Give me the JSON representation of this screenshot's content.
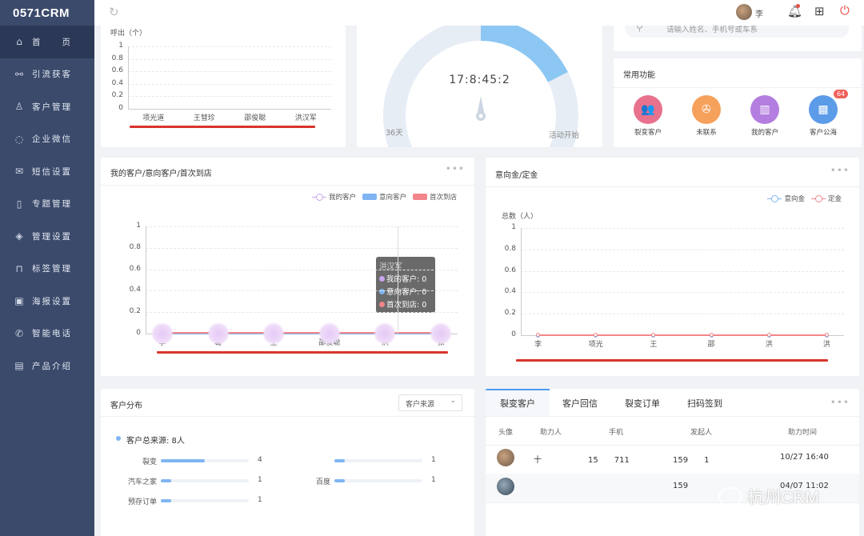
{
  "app": {
    "logo": "0571CRM"
  },
  "sidebar": {
    "items": [
      {
        "label": "首　　页",
        "icon": "home-icon",
        "glyph": "⌂"
      },
      {
        "label": "引流获客",
        "icon": "share-icon",
        "glyph": "⚯"
      },
      {
        "label": "客户管理",
        "icon": "user-icon",
        "glyph": "♙"
      },
      {
        "label": "企业微信",
        "icon": "chat-icon",
        "glyph": "◌"
      },
      {
        "label": "短信设置",
        "icon": "mail-icon",
        "glyph": "✉"
      },
      {
        "label": "专题管理",
        "icon": "document-icon",
        "glyph": "▯"
      },
      {
        "label": "管理设置",
        "icon": "layers-icon",
        "glyph": "◈"
      },
      {
        "label": "标签管理",
        "icon": "bookmark-icon",
        "glyph": "⊓"
      },
      {
        "label": "海报设置",
        "icon": "image-icon",
        "glyph": "▣"
      },
      {
        "label": "智能电话",
        "icon": "phone-icon",
        "glyph": "✆"
      },
      {
        "label": "产品介绍",
        "icon": "book-icon",
        "glyph": "▤"
      }
    ]
  },
  "topbar": {
    "user_name": "李",
    "icons": [
      "refresh-icon",
      "avatar",
      "bell-icon",
      "apps-icon",
      "power-icon"
    ]
  },
  "calls_chart": {
    "ylabel": "呼出（个）",
    "yticks": [
      "1",
      "0.8",
      "0.6",
      "0.4",
      "0.2",
      "0"
    ],
    "categories": [
      "项光道",
      "王彗珍",
      "邵俊聪",
      "洪汉军"
    ]
  },
  "gauge": {
    "time": "17:8:45:2",
    "left_label": "36天",
    "right_label": "活动开始",
    "value_fraction": 0.27
  },
  "search": {
    "placeholder": "请输入姓名、手机号或车系"
  },
  "functions": {
    "title": "常用功能",
    "items": [
      {
        "label": "裂变客户",
        "icon": "users-icon",
        "color": "#e8728e",
        "glyph": "👥"
      },
      {
        "label": "未联系",
        "icon": "tie-icon",
        "color": "#f5a15c",
        "glyph": "✇"
      },
      {
        "label": "我的客户",
        "icon": "bar-chart-icon",
        "color": "#b47ee0",
        "glyph": "▥"
      },
      {
        "label": "客户公海",
        "icon": "briefcase-icon",
        "color": "#5b9be8",
        "glyph": "▩"
      }
    ],
    "badge": "64"
  },
  "chart1": {
    "title": "我的客户/意向客户/首次到店",
    "legend": [
      "我的客户",
      "意向客户",
      "首次到店"
    ],
    "yticks": [
      "1",
      "0.8",
      "0.6",
      "0.4",
      "0.2",
      "0"
    ],
    "xlabels": [
      "李",
      "葛",
      "王",
      "邵俊聪",
      "洪",
      "张"
    ],
    "tooltip": {
      "title": "洪汉军",
      "rows": [
        "我的客户: 0",
        "意向客户: 0",
        "首次到店: 0"
      ]
    }
  },
  "chart2": {
    "title": "意向金/定金",
    "legend": [
      "意向金",
      "定金"
    ],
    "ylabel": "总数（人）",
    "yticks": [
      "1",
      "0.8",
      "0.6",
      "0.4",
      "0.2",
      "0"
    ],
    "xlabels": [
      "李",
      "项光",
      "王",
      "邵",
      "洪",
      "洪"
    ]
  },
  "distribution": {
    "title": "客户分布",
    "select": "客户来源",
    "total": "客户总来源: 8人",
    "items": [
      {
        "label": "裂变",
        "value": "4",
        "fraction": 0.5
      },
      {
        "label": "汽车之家",
        "value": "1",
        "fraction": 0.12
      },
      {
        "label": "预存订单",
        "value": "1",
        "fraction": 0.12
      },
      {
        "label": "",
        "value": "1",
        "fraction": 0.12
      },
      {
        "label": "百度",
        "value": "1",
        "fraction": 0.12
      }
    ]
  },
  "table": {
    "tabs": [
      "裂变客户",
      "客户回信",
      "裂变订单",
      "扫码签到"
    ],
    "headers": [
      "头像",
      "助力人",
      "手机",
      "发起人",
      "助力时间"
    ],
    "rows": [
      {
        "helper": "十",
        "phone": "15　　711",
        "sponsor": "159　　1",
        "time": "10/27 16:40"
      },
      {
        "helper": "",
        "phone": "",
        "sponsor": "159",
        "time": "04/07 11:02"
      }
    ]
  },
  "watermark": "杭州CRM",
  "chart_data": [
    {
      "type": "bar",
      "title": "",
      "ylabel": "呼出（个）",
      "categories": [
        "项光道",
        "王彗珍",
        "邵俊聪",
        "洪汉军"
      ],
      "values": [
        0,
        0,
        0,
        0
      ],
      "ylim": [
        0,
        1
      ]
    },
    {
      "type": "line",
      "title": "我的客户/意向客户/首次到店",
      "categories": [
        "李",
        "葛",
        "王",
        "邵俊聪",
        "洪",
        "张"
      ],
      "series": [
        {
          "name": "我的客户",
          "values": [
            0,
            0,
            0,
            0,
            0,
            0
          ]
        },
        {
          "name": "意向客户",
          "values": [
            0,
            0,
            0,
            0,
            0,
            0
          ]
        },
        {
          "name": "首次到店",
          "values": [
            0,
            0,
            0,
            0,
            0,
            0
          ]
        }
      ],
      "ylim": [
        0,
        1
      ],
      "legend": "top-right"
    },
    {
      "type": "line",
      "title": "意向金/定金",
      "ylabel": "总数（人）",
      "categories": [
        "李",
        "项光",
        "王",
        "邵",
        "洪",
        "洪"
      ],
      "series": [
        {
          "name": "意向金",
          "values": [
            0,
            0,
            0,
            0,
            0,
            0
          ]
        },
        {
          "name": "定金",
          "values": [
            0,
            0,
            0,
            0,
            0,
            0
          ]
        }
      ],
      "ylim": [
        0,
        1
      ],
      "legend": "top-right"
    }
  ]
}
